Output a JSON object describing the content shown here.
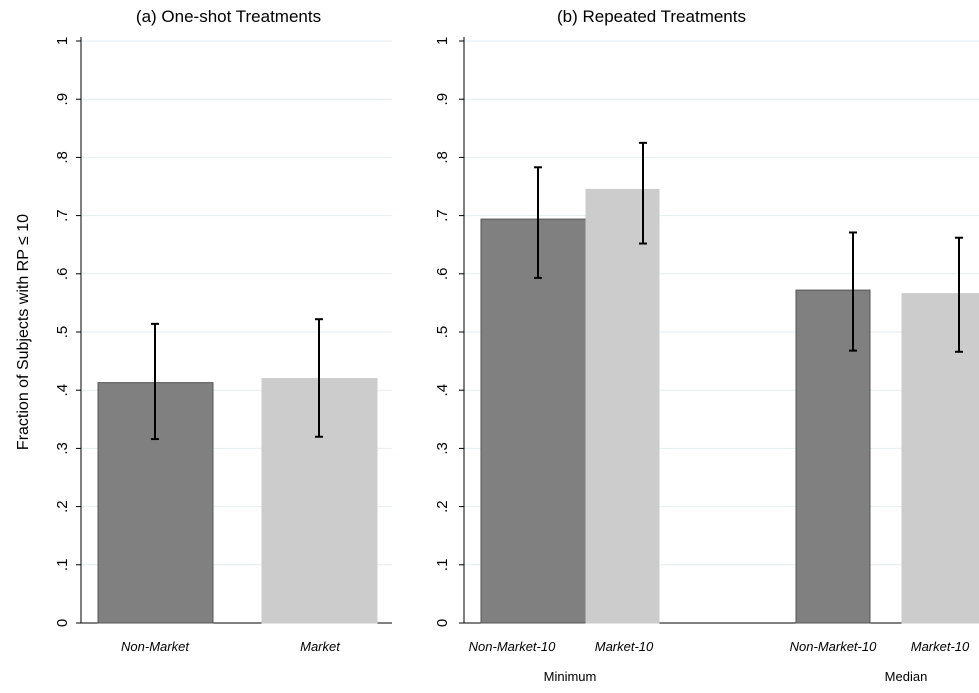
{
  "y_axis_label": "Fraction of Subjects with RP ≤ 10",
  "colors": {
    "non_market": "#808080",
    "market": "#cccccc",
    "grid": "#e6eef0",
    "axis": "#000000"
  },
  "chart_data": [
    {
      "type": "bar",
      "title": "(a) One-shot Treatments",
      "ylabel": "Fraction of Subjects with RP ≤ 10",
      "ylim": [
        0,
        1
      ],
      "yticks": [
        "0",
        ".1",
        ".2",
        ".3",
        ".4",
        ".5",
        ".6",
        ".7",
        ".8",
        ".9",
        "1"
      ],
      "grid": true,
      "groups": [
        {
          "label": "",
          "bars": [
            {
              "label": "Non-Market",
              "value": 0.413,
              "ci": [
                0.316,
                0.514
              ],
              "color": "#808080"
            },
            {
              "label": "Market",
              "value": 0.42,
              "ci": [
                0.32,
                0.522
              ],
              "color": "#cccccc"
            }
          ]
        }
      ]
    },
    {
      "type": "bar",
      "title": "(b) Repeated Treatments",
      "ylabel": "",
      "ylim": [
        0,
        1
      ],
      "yticks": [
        "0",
        ".1",
        ".2",
        ".3",
        ".4",
        ".5",
        ".6",
        ".7",
        ".8",
        ".9",
        "1"
      ],
      "grid": true,
      "groups": [
        {
          "label": "Minimum",
          "bars": [
            {
              "label": "Non-Market-10",
              "value": 0.694,
              "ci": [
                0.593,
                0.783
              ],
              "color": "#808080"
            },
            {
              "label": "Market-10",
              "value": 0.745,
              "ci": [
                0.652,
                0.825
              ],
              "color": "#cccccc"
            }
          ]
        },
        {
          "label": "Median",
          "bars": [
            {
              "label": "Non-Market-10",
              "value": 0.572,
              "ci": [
                0.468,
                0.671
              ],
              "color": "#808080"
            },
            {
              "label": "Market-10",
              "value": 0.566,
              "ci": [
                0.466,
                0.662
              ],
              "color": "#cccccc"
            }
          ]
        }
      ]
    }
  ]
}
